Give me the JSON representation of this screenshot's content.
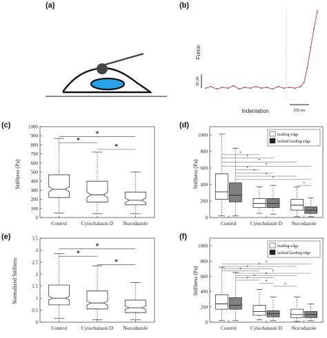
{
  "panels": {
    "a": {
      "label": "(a)"
    },
    "b": {
      "label": "(b)"
    },
    "c": {
      "label": "(c)"
    },
    "d": {
      "label": "(d)"
    },
    "e": {
      "label": "(e)"
    },
    "f": {
      "label": "(f)"
    }
  },
  "chart_data": [
    {
      "id": "b",
      "type": "line",
      "xlabel": "Indentation",
      "ylabel": "Force",
      "y_scalebar_label": "50 pN",
      "x_scalebar_label": "200 nm",
      "x": [
        0.0,
        0.05,
        0.1,
        0.15,
        0.2,
        0.25,
        0.3,
        0.35,
        0.4,
        0.45,
        0.5,
        0.55,
        0.6,
        0.65,
        0.7,
        0.75,
        0.8,
        0.85,
        0.88,
        0.91,
        0.94,
        0.97,
        1.0
      ],
      "y": [
        0.05,
        0.07,
        0.04,
        0.06,
        0.05,
        0.08,
        0.04,
        0.06,
        0.05,
        0.07,
        0.05,
        0.06,
        0.04,
        0.07,
        0.05,
        0.06,
        0.05,
        0.07,
        0.12,
        0.3,
        0.55,
        0.78,
        1.0
      ]
    },
    {
      "id": "c",
      "type": "box",
      "ylabel": "Stiffness (Pa)",
      "ylim": [
        0,
        1000
      ],
      "yticks": [
        "0",
        "100",
        "200",
        "300",
        "400",
        "500",
        "600",
        "700",
        "800",
        "900",
        "1000"
      ],
      "categories": [
        "Control",
        "Cytochalasin D",
        "Nocodazole"
      ],
      "boxes": [
        {
          "min": 50,
          "q1": 220,
          "median": 310,
          "q3": 470,
          "max": 870,
          "notch": 30
        },
        {
          "min": 40,
          "q1": 170,
          "median": 250,
          "q3": 400,
          "max": 720,
          "notch": 30
        },
        {
          "min": 40,
          "q1": 140,
          "median": 190,
          "q3": 280,
          "max": 500,
          "notch": 25
        }
      ],
      "significance": [
        {
          "from": 0,
          "to": 1,
          "y": 820,
          "label": "*"
        },
        {
          "from": 0,
          "to": 2,
          "y": 890,
          "label": "*"
        },
        {
          "from": 1,
          "to": 2,
          "y": 750,
          "label": "*"
        }
      ]
    },
    {
      "id": "d",
      "type": "box",
      "ylabel": "Stiffness (Pa)",
      "ylim": [
        0,
        1100
      ],
      "yticks": [
        "0",
        "200",
        "400",
        "600",
        "800",
        "1000"
      ],
      "categories": [
        "Control",
        "Cytochalasin D",
        "Nocodazole"
      ],
      "legend": {
        "position": "top-right",
        "entries": [
          "leading edge",
          "behind leading edge"
        ]
      },
      "series_colors": [
        "#ffffff",
        "#808080"
      ],
      "boxes": [
        [
          {
            "min": 20,
            "q1": 220,
            "median": 310,
            "q3": 530,
            "max": 1010
          },
          {
            "min": 20,
            "q1": 190,
            "median": 270,
            "q3": 420,
            "max": 840
          }
        ],
        [
          {
            "min": 50,
            "q1": 120,
            "median": 170,
            "q3": 230,
            "max": 370
          },
          {
            "min": 40,
            "q1": 120,
            "median": 170,
            "q3": 230,
            "max": 390
          }
        ],
        [
          {
            "min": 10,
            "q1": 90,
            "median": 150,
            "q3": 220,
            "max": 370
          },
          {
            "min": 10,
            "q1": 50,
            "median": 90,
            "q3": 130,
            "max": 240
          }
        ]
      ]
    },
    {
      "id": "e",
      "type": "box",
      "ylabel": "Normalized Stiffness",
      "ylim": [
        0,
        3.5
      ],
      "yticks": [
        "0",
        "0.5",
        "1",
        "1.5",
        "2",
        "2.5",
        "3",
        "3.5"
      ],
      "categories": [
        "Control",
        "Cytochalasin D",
        "Nocodazole"
      ],
      "boxes": [
        {
          "min": 0.15,
          "q1": 0.72,
          "median": 1.0,
          "q3": 1.55,
          "max": 2.85,
          "notch": 0.08
        },
        {
          "min": 0.1,
          "q1": 0.55,
          "median": 0.8,
          "q3": 1.3,
          "max": 2.35,
          "notch": 0.08
        },
        {
          "min": 0.1,
          "q1": 0.4,
          "median": 0.6,
          "q3": 0.92,
          "max": 1.65,
          "notch": 0.07
        }
      ],
      "significance": [
        {
          "from": 0,
          "to": 1,
          "y": 2.75,
          "label": "*"
        },
        {
          "from": 0,
          "to": 2,
          "y": 3.05,
          "label": "*"
        },
        {
          "from": 1,
          "to": 2,
          "y": 2.4,
          "label": "*"
        }
      ]
    },
    {
      "id": "f",
      "type": "box",
      "ylabel": "Stiffness (Pa)",
      "ylim": [
        0,
        1100
      ],
      "yticks": [
        "0",
        "200",
        "400",
        "600",
        "800",
        "1000"
      ],
      "categories": [
        "Control",
        "Cytochalasin D",
        "Nocodazole"
      ],
      "legend": {
        "position": "top-right",
        "entries": [
          "leading edge",
          "behind leading edge"
        ]
      },
      "series_colors": [
        "#ffffff",
        "#808080"
      ],
      "boxes": [
        [
          {
            "min": 20,
            "q1": 170,
            "median": 240,
            "q3": 360,
            "max": 720
          },
          {
            "min": 20,
            "q1": 170,
            "median": 220,
            "q3": 320,
            "max": 650
          }
        ],
        [
          {
            "min": 30,
            "q1": 90,
            "median": 140,
            "q3": 220,
            "max": 430
          },
          {
            "min": 20,
            "q1": 70,
            "median": 110,
            "q3": 150,
            "max": 330
          }
        ],
        [
          {
            "min": 10,
            "q1": 60,
            "median": 100,
            "q3": 170,
            "max": 330
          },
          {
            "min": 20,
            "q1": 60,
            "median": 100,
            "q3": 140,
            "max": 240
          }
        ]
      ]
    }
  ]
}
